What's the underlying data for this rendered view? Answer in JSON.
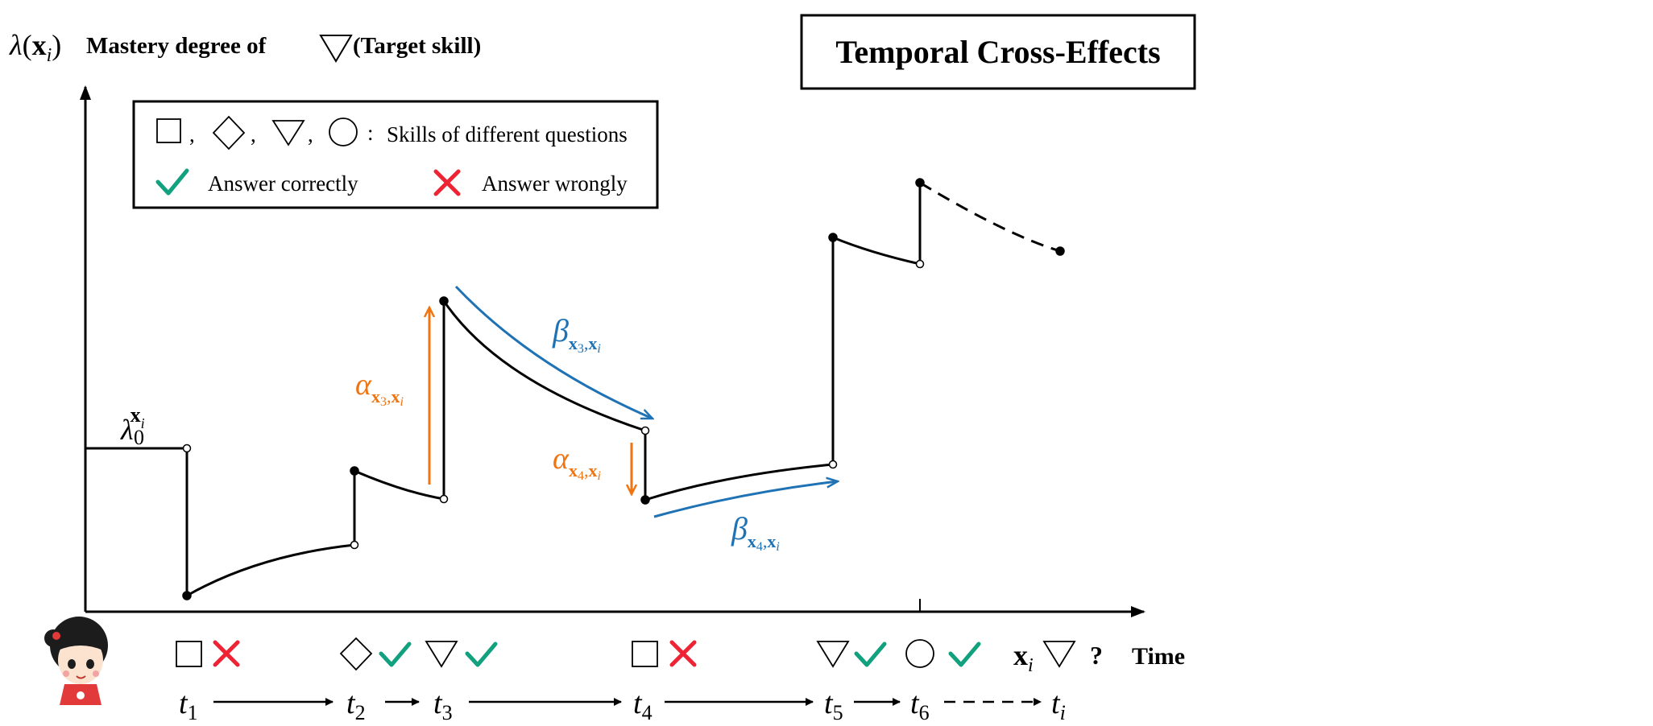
{
  "title_box": {
    "title": "Temporal Cross-Effects"
  },
  "y_axis": {
    "lambda_symbol": "λ",
    "x_bold": "x",
    "x_sub": "i",
    "label": "Mastery degree of",
    "target_skill": "(Target skill)"
  },
  "legend": {
    "separator": ",",
    "colon": ":",
    "skills_text": "Skills of different questions",
    "correct_text": "Answer correctly",
    "wrong_text": "Answer wrongly"
  },
  "annotations": {
    "lambda0": {
      "symbol": "λ",
      "sub": "0",
      "sup": "x",
      "sup_sub": "i"
    },
    "alpha_3": {
      "symbol": "α",
      "sub1": "x",
      "sub1_idx": "3",
      "comma": ",",
      "sub2": "x",
      "sub2_idx": "i"
    },
    "alpha_4": {
      "symbol": "α",
      "sub1": "x",
      "sub1_idx": "4",
      "comma": ",",
      "sub2": "x",
      "sub2_idx": "i"
    },
    "beta_3": {
      "symbol": "β",
      "sub1": "x",
      "sub1_idx": "3",
      "comma": ",",
      "sub2": "x",
      "sub2_idx": "i"
    },
    "beta_4": {
      "symbol": "β",
      "sub1": "x",
      "sub1_idx": "4",
      "comma": ",",
      "sub2": "x",
      "sub2_idx": "i"
    }
  },
  "timeline": {
    "time_label": "Time",
    "t_symbol": "t",
    "labels": [
      "1",
      "2",
      "3",
      "4",
      "5",
      "6",
      "i"
    ],
    "target": {
      "x_bold": "x",
      "x_sub": "i",
      "question": "?"
    }
  },
  "colors": {
    "alpha": "#F07511",
    "beta": "#1F72B4",
    "correct": "#11A17E",
    "wrong": "#EE2434",
    "line": "#000000"
  }
}
